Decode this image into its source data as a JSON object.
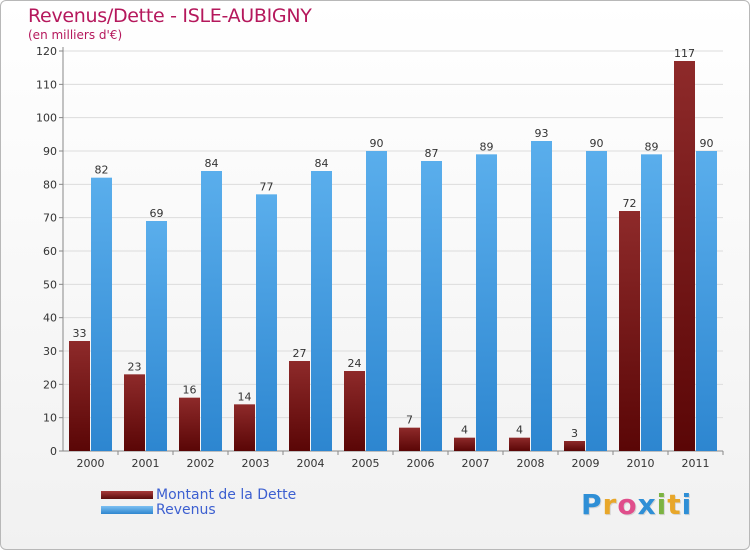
{
  "chart_data": {
    "type": "bar",
    "title": "Revenus/Dette - ISLE-AUBIGNY",
    "subtitle": "(en milliers d'€)",
    "categories": [
      "2000",
      "2001",
      "2002",
      "2003",
      "2004",
      "2005",
      "2006",
      "2007",
      "2008",
      "2009",
      "2010",
      "2011"
    ],
    "series": [
      {
        "name": "Montant de la Dette",
        "color": "#7a1d1d",
        "values": [
          33,
          23,
          16,
          14,
          27,
          24,
          7,
          4,
          4,
          3,
          72,
          117
        ]
      },
      {
        "name": "Revenus",
        "color": "#4da3e6",
        "values": [
          82,
          69,
          84,
          77,
          84,
          90,
          87,
          89,
          93,
          90,
          89,
          90
        ]
      }
    ],
    "ylim": [
      0,
      120
    ],
    "yticks": [
      0,
      10,
      20,
      30,
      40,
      50,
      60,
      70,
      80,
      90,
      100,
      110,
      120
    ],
    "grid": true,
    "legend_position": "bottom-left",
    "data_labels": true
  },
  "logo": {
    "letters": [
      {
        "ch": "P",
        "color": "#2f8fd6"
      },
      {
        "ch": "r",
        "color": "#e8a72a"
      },
      {
        "ch": "o",
        "color": "#e04e8b"
      },
      {
        "ch": "x",
        "color": "#2f8fd6"
      },
      {
        "ch": "i",
        "color": "#7cb342"
      },
      {
        "ch": "t",
        "color": "#e8a72a"
      },
      {
        "ch": "i",
        "color": "#2f8fd6"
      }
    ]
  }
}
